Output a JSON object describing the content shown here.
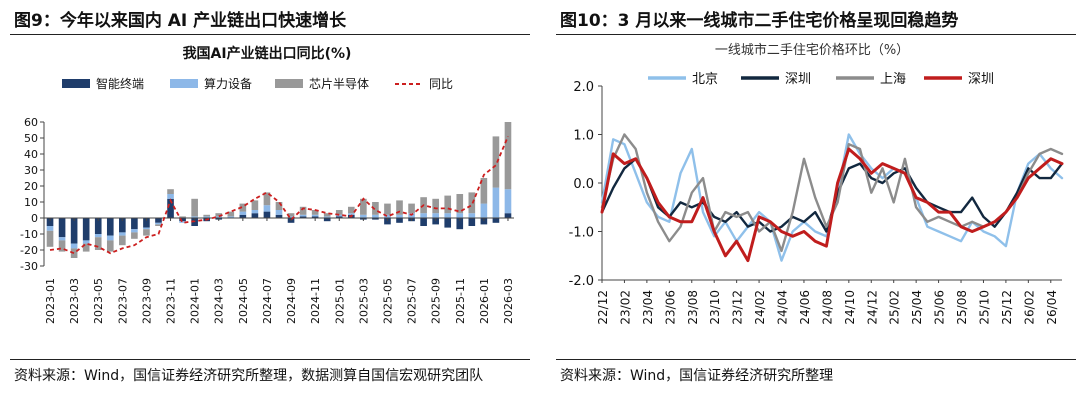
{
  "left": {
    "figure_title": "图9：今年以来国内 AI 产业链出口快速增长",
    "source": "资料来源：Wind，国信证券经济研究所整理，数据测算自国信宏观研究团队"
  },
  "right": {
    "figure_title": "图10：3 月以来一线城市二手住宅价格呈现回稳趋势",
    "source": "资料来源：Wind，国信证券经济研究所整理"
  },
  "chart_data": [
    {
      "type": "bar",
      "stacked": true,
      "title": "我国AI产业链出口同比(%)",
      "xlabel": "",
      "ylabel": "",
      "ylim": [
        -30,
        60
      ],
      "yticks": [
        -30,
        -20,
        -10,
        0,
        10,
        20,
        30,
        40,
        50,
        60
      ],
      "legend": "top",
      "grid": false,
      "categories": [
        "2023-01",
        "2023-02",
        "2023-03",
        "2023-04",
        "2023-05",
        "2023-06",
        "2023-07",
        "2023-08",
        "2023-09",
        "2023-10",
        "2023-11",
        "2023-12",
        "2024-01",
        "2024-02",
        "2024-03",
        "2024-04",
        "2024-05",
        "2024-06",
        "2024-07",
        "2024-08",
        "2024-09",
        "2024-10",
        "2024-11",
        "2024-12",
        "2025-01",
        "2025-02",
        "2025-03",
        "2025-04",
        "2025-05",
        "2025-06",
        "2025-07",
        "2025-08",
        "2025-09",
        "2025-10",
        "2025-11",
        "2025-12",
        "2026-01",
        "2026-02",
        "2026-03"
      ],
      "tick_labels": [
        "2023-01",
        "2023-03",
        "2023-05",
        "2023-07",
        "2023-09",
        "2023-11",
        "2024-01",
        "2024-03",
        "2024-05",
        "2024-07",
        "2024-09",
        "2024-11",
        "2025-01",
        "2025-03",
        "2025-05",
        "2025-07",
        "2025-09",
        "2025-11",
        "2026-01",
        "2026-03"
      ],
      "series": [
        {
          "name": "智能终端",
          "kind": "bar",
          "color": "#1f3d6b",
          "values": [
            -5,
            -12,
            -16,
            -14,
            -10,
            -11,
            -9,
            -7,
            -6,
            -3,
            12,
            -2,
            -5,
            -2,
            -1,
            0,
            2,
            3,
            4,
            2,
            -3,
            1,
            1,
            -2,
            1,
            2,
            -1,
            -1,
            -4,
            -3,
            -2,
            -5,
            -4,
            -6,
            -7,
            -5,
            -4,
            -3,
            3
          ]
        },
        {
          "name": "算力设备",
          "kind": "bar",
          "color": "#8db8e8",
          "values": [
            -3,
            -2,
            -3,
            -2,
            -2,
            -3,
            -2,
            -2,
            -1,
            -1,
            3,
            -1,
            1,
            1,
            1,
            1,
            2,
            2,
            4,
            3,
            1,
            1,
            1,
            1,
            1,
            1,
            2,
            2,
            2,
            2,
            3,
            3,
            3,
            3,
            3,
            3,
            9,
            19,
            15
          ]
        },
        {
          "name": "芯片半导体",
          "kind": "bar",
          "color": "#999999",
          "values": [
            -10,
            -7,
            -6,
            -5,
            -8,
            -7,
            -6,
            -4,
            -4,
            -1,
            3,
            1,
            11,
            1,
            2,
            3,
            5,
            6,
            8,
            5,
            2,
            5,
            3,
            2,
            3,
            4,
            10,
            8,
            7,
            9,
            6,
            10,
            9,
            11,
            12,
            13,
            16,
            32,
            42
          ]
        },
        {
          "name": "同比",
          "kind": "line",
          "color": "#cc1f1f",
          "dash": true,
          "values": [
            -20,
            -19,
            -22,
            -16,
            -18,
            -22,
            -19,
            -17,
            -12,
            -10,
            11,
            -3,
            -2,
            -1,
            1,
            4,
            7,
            12,
            16,
            10,
            -1,
            6,
            5,
            3,
            2,
            1,
            12,
            5,
            1,
            4,
            2,
            8,
            6,
            6,
            4,
            8,
            27,
            33,
            51
          ]
        }
      ]
    },
    {
      "type": "line",
      "title": "一线城市二手住宅价格环比（%）",
      "xlabel": "",
      "ylabel": "",
      "ylim": [
        -2.0,
        2.0
      ],
      "yticks": [
        "2.0",
        "1.0",
        "0.0",
        "-1.0",
        "-2.0"
      ],
      "legend": "top",
      "grid": false,
      "x": [
        "22/12",
        "23/01",
        "23/02",
        "23/03",
        "23/04",
        "23/05",
        "23/06",
        "23/07",
        "23/08",
        "23/09",
        "23/10",
        "23/11",
        "23/12",
        "24/01",
        "24/02",
        "24/03",
        "24/04",
        "24/05",
        "24/06",
        "24/07",
        "24/08",
        "24/09",
        "24/10",
        "24/11",
        "24/12",
        "25/01",
        "25/02",
        "25/03",
        "25/04",
        "25/05",
        "25/06",
        "25/07",
        "25/08",
        "25/09",
        "25/10",
        "25/11",
        "25/12",
        "26/01",
        "26/02",
        "26/03",
        "26/04",
        "26/05"
      ],
      "tick_labels": [
        "22/12",
        "23/02",
        "23/04",
        "23/06",
        "23/08",
        "23/10",
        "23/12",
        "24/02",
        "24/04",
        "24/06",
        "24/08",
        "24/10",
        "24/12",
        "25/02",
        "25/04",
        "25/06",
        "25/08",
        "25/10",
        "25/12",
        "26/02",
        "26/04"
      ],
      "series": [
        {
          "name": "北京",
          "color": "#8fc0ea",
          "values": [
            -0.4,
            0.9,
            0.8,
            0.2,
            -0.4,
            -0.7,
            -0.8,
            0.2,
            0.7,
            -0.6,
            -1.1,
            -0.8,
            -1.2,
            -0.9,
            -0.6,
            -0.8,
            -1.6,
            -1.0,
            -0.8,
            -1.0,
            -1.1,
            -0.2,
            1.0,
            0.6,
            0.3,
            0.1,
            0.3,
            0.2,
            -0.3,
            -0.9,
            -1.0,
            -1.1,
            -1.2,
            -0.8,
            -1.0,
            -1.1,
            -1.3,
            -0.2,
            0.4,
            0.6,
            0.3,
            0.1
          ]
        },
        {
          "name": "深圳",
          "color": "#12283f",
          "values": [
            -0.6,
            -0.1,
            0.3,
            0.5,
            0.1,
            -0.5,
            -0.7,
            -0.4,
            -0.5,
            -0.4,
            -0.7,
            -0.8,
            -0.6,
            -0.9,
            -0.8,
            -1.0,
            -0.9,
            -0.7,
            -0.8,
            -0.6,
            -1.0,
            -0.2,
            0.3,
            0.4,
            0.1,
            0.0,
            0.2,
            0.3,
            -0.1,
            -0.4,
            -0.5,
            -0.6,
            -0.6,
            -0.3,
            -0.7,
            -0.9,
            -0.6,
            -0.2,
            0.3,
            0.1,
            0.1,
            0.4
          ]
        },
        {
          "name": "上海",
          "color": "#8c8c8c",
          "values": [
            -0.5,
            0.5,
            1.0,
            0.7,
            -0.2,
            -0.8,
            -1.2,
            -0.9,
            -0.2,
            0.1,
            -1.0,
            -0.6,
            -0.7,
            -0.6,
            -1.0,
            -0.8,
            -1.4,
            -0.6,
            0.5,
            -0.3,
            -0.9,
            -0.4,
            0.8,
            0.7,
            -0.2,
            0.3,
            -0.4,
            0.5,
            -0.5,
            -0.8,
            -0.7,
            -0.8,
            -0.9,
            -0.8,
            -0.9,
            -0.8,
            -0.6,
            -0.3,
            0.2,
            0.6,
            0.7,
            0.6
          ]
        },
        {
          "name": "深圳",
          "color": "#c01d1d",
          "values": [
            -0.6,
            0.6,
            0.4,
            0.5,
            0.1,
            -0.4,
            -0.7,
            -0.8,
            -0.8,
            -0.3,
            -1.0,
            -1.5,
            -1.2,
            -1.6,
            -0.7,
            -0.8,
            -1.0,
            -1.1,
            -1.0,
            -1.2,
            -1.3,
            0.0,
            0.7,
            0.5,
            0.2,
            0.4,
            0.3,
            0.2,
            -0.3,
            -0.4,
            -0.6,
            -0.6,
            -0.9,
            -1.0,
            -0.9,
            -0.8,
            -0.6,
            -0.3,
            0.1,
            0.3,
            0.5,
            0.4
          ]
        }
      ]
    }
  ]
}
